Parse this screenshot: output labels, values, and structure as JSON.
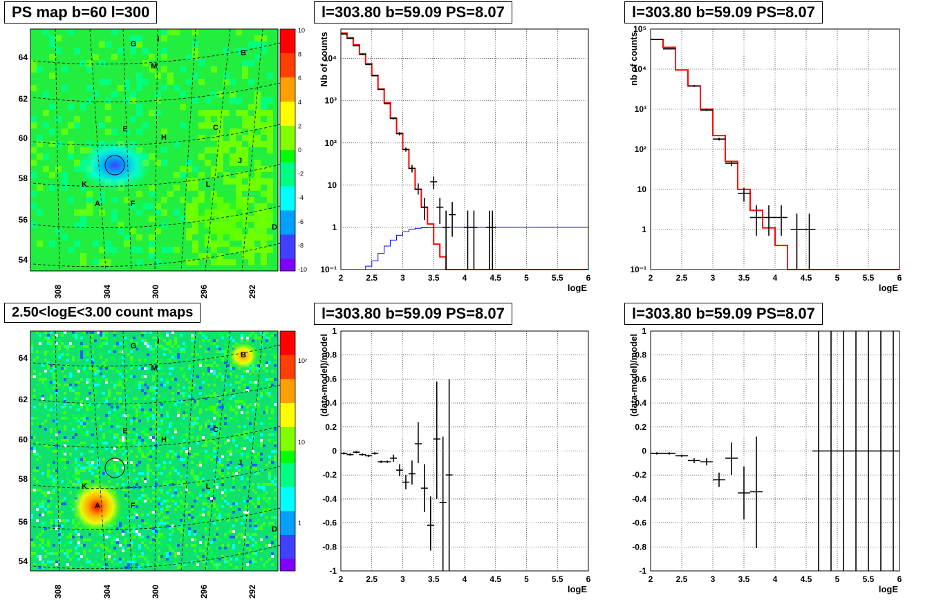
{
  "titles": {
    "map_ps": "PS map b=60 l=300",
    "map_counts": "2.50<logE<3.00 count maps",
    "spec1": "l=303.80 b=59.09 PS=8.07",
    "spec2": "l=303.80 b=59.09 PS=8.07",
    "res1": "l=303.80 b=59.09 PS=8.07",
    "res2": "l=303.80 b=59.09 PS=8.07"
  },
  "maps": {
    "x_ticks": [
      "308",
      "304",
      "300",
      "296",
      "292"
    ],
    "y_ticks": [
      "64",
      "62",
      "60",
      "58",
      "56",
      "54"
    ],
    "sources": [
      "G",
      "I",
      "B",
      "M",
      "E",
      "H",
      "C",
      "J",
      "K",
      "L",
      "A",
      "F",
      "D"
    ],
    "ps_palette_ticks": [
      "10",
      "8",
      "6",
      "4",
      "2",
      "0",
      "-2",
      "-4",
      "-6",
      "-8",
      "-10"
    ],
    "count_palette_ticks": [
      "10²",
      "10",
      "1"
    ],
    "colors": [
      "#8000ff",
      "#4040ff",
      "#00a0ff",
      "#00ffff",
      "#00ff80",
      "#00ff00",
      "#80ff00",
      "#ffff00",
      "#ffa000",
      "#ff4000",
      "#ff0000"
    ]
  },
  "chart_data": [
    {
      "type": "line",
      "panel": "spec1",
      "xlabel": "logE",
      "ylabel": "Nb of counts",
      "xlim": [
        2,
        6
      ],
      "ylim": [
        0.1,
        50000
      ],
      "yscale": "log",
      "x_ticks": [
        "2",
        "2.5",
        "3",
        "3.5",
        "4",
        "4.5",
        "5",
        "5.5",
        "6"
      ],
      "y_ticks": [
        "10⁻¹",
        "1",
        "10",
        "10²",
        "10³",
        "10⁴"
      ],
      "grid": true,
      "series": [
        {
          "color": "#ff0000",
          "values": [
            40000,
            31000,
            21000,
            13000,
            7500,
            4000,
            1900,
            900,
            390,
            170,
            70,
            25,
            8,
            3,
            1.2,
            0.4,
            0.2,
            0.1,
            0.1,
            0.1,
            0.1,
            0.1,
            0.1,
            0.1,
            0.1,
            0.1,
            0.1,
            0.1,
            0.1,
            0.1,
            0.1,
            0.1,
            0.1,
            0.1,
            0.1,
            0.1,
            0.1,
            0.1,
            0.1,
            0.1
          ]
        },
        {
          "color": "#0000ff",
          "values": [
            0.1,
            0.1,
            0.1,
            0.1,
            0.12,
            0.16,
            0.24,
            0.36,
            0.5,
            0.65,
            0.78,
            0.9,
            0.95,
            0.98,
            0.99,
            1,
            1,
            1,
            1,
            1,
            1,
            1,
            1,
            1,
            1,
            1,
            1,
            1,
            1,
            1,
            1,
            1,
            1,
            1,
            1,
            1,
            1,
            1,
            1,
            1
          ]
        }
      ],
      "points": [
        {
          "x": 2.05,
          "y": 38000,
          "lo": 37000,
          "hi": 39000
        },
        {
          "x": 2.15,
          "y": 30000,
          "lo": 29000,
          "hi": 31000
        },
        {
          "x": 2.25,
          "y": 20000,
          "lo": 19500,
          "hi": 20500
        },
        {
          "x": 2.35,
          "y": 12500,
          "lo": 12000,
          "hi": 13000
        },
        {
          "x": 2.45,
          "y": 7200,
          "lo": 7000,
          "hi": 7400
        },
        {
          "x": 2.55,
          "y": 3900,
          "lo": 3800,
          "hi": 4000
        },
        {
          "x": 2.65,
          "y": 1850,
          "lo": 1800,
          "hi": 1900
        },
        {
          "x": 2.75,
          "y": 850,
          "lo": 820,
          "hi": 880
        },
        {
          "x": 2.85,
          "y": 380,
          "lo": 360,
          "hi": 400
        },
        {
          "x": 2.95,
          "y": 165,
          "lo": 150,
          "hi": 180
        },
        {
          "x": 3.05,
          "y": 70,
          "lo": 62,
          "hi": 78
        },
        {
          "x": 3.15,
          "y": 25,
          "lo": 20,
          "hi": 30
        },
        {
          "x": 3.25,
          "y": 8,
          "lo": 6,
          "hi": 11
        },
        {
          "x": 3.35,
          "y": 3,
          "lo": 1.5,
          "hi": 5
        },
        {
          "x": 3.5,
          "y": 12,
          "lo": 8,
          "hi": 16
        },
        {
          "x": 3.6,
          "y": 3,
          "lo": 1.2,
          "hi": 5
        },
        {
          "x": 3.7,
          "y": 1,
          "lo": 0.1,
          "hi": 2.5
        },
        {
          "x": 3.8,
          "y": 2,
          "lo": 0.6,
          "hi": 4
        },
        {
          "x": 4.05,
          "y": 1,
          "lo": 0.1,
          "hi": 2.5
        },
        {
          "x": 4.15,
          "y": 1,
          "lo": 0.1,
          "hi": 2.5
        },
        {
          "x": 4.4,
          "y": 1,
          "lo": 0.1,
          "hi": 2.5
        },
        {
          "x": 4.45,
          "y": 1,
          "lo": 0.1,
          "hi": 2.5
        }
      ]
    },
    {
      "type": "line",
      "panel": "spec2",
      "xlabel": "logE",
      "ylabel": "nb of counts",
      "xlim": [
        2,
        6
      ],
      "ylim": [
        0.1,
        100000
      ],
      "yscale": "log",
      "x_ticks": [
        "2",
        "2.5",
        "3",
        "3.5",
        "4",
        "4.5",
        "5",
        "5.5",
        "6"
      ],
      "y_ticks": [
        "10⁻¹",
        "1",
        "10",
        "10²",
        "10³",
        "10⁴",
        "10⁵"
      ],
      "grid": true,
      "series": [
        {
          "color": "#ff0000",
          "values": [
            55000,
            35000,
            9500,
            3800,
            1000,
            220,
            50,
            10,
            3,
            1.1,
            0.4,
            0.1,
            0.1,
            0.1,
            0.1,
            0.1,
            0.1,
            0.1,
            0.1,
            0.1
          ]
        }
      ],
      "points": [
        {
          "x": 2.1,
          "y": 55000,
          "lo": 54000,
          "hi": 56000
        },
        {
          "x": 2.3,
          "y": 32000,
          "lo": 31000,
          "hi": 33000
        },
        {
          "x": 2.7,
          "y": 3800,
          "lo": 3600,
          "hi": 4000
        },
        {
          "x": 2.9,
          "y": 950,
          "lo": 900,
          "hi": 1000
        },
        {
          "x": 3.1,
          "y": 180,
          "lo": 165,
          "hi": 195
        },
        {
          "x": 3.3,
          "y": 45,
          "lo": 38,
          "hi": 52
        },
        {
          "x": 3.5,
          "y": 8,
          "lo": 5,
          "hi": 11
        },
        {
          "x": 3.7,
          "y": 2,
          "lo": 0.7,
          "hi": 4
        },
        {
          "x": 3.9,
          "y": 2,
          "lo": 0.7,
          "hi": 4
        },
        {
          "x": 4.1,
          "y": 2,
          "lo": 0.7,
          "hi": 4
        },
        {
          "x": 4.35,
          "y": 1,
          "lo": 0.1,
          "hi": 2.5
        },
        {
          "x": 4.55,
          "y": 1,
          "lo": 0.1,
          "hi": 2.5
        }
      ]
    },
    {
      "type": "scatter",
      "panel": "res1",
      "xlabel": "logE",
      "ylabel": "(data-model)/model",
      "xlim": [
        2,
        6
      ],
      "ylim": [
        -1,
        1
      ],
      "x_ticks": [
        "2",
        "2.5",
        "3",
        "3.5",
        "4",
        "4.5",
        "5",
        "5.5",
        "6"
      ],
      "y_ticks": [
        "1",
        "0.8",
        "0.6",
        "0.4",
        "0.2",
        "0",
        "-0.2",
        "-0.4",
        "-0.6",
        "-0.8",
        "-1"
      ],
      "grid": true,
      "points": [
        {
          "x": 2.05,
          "y": -0.02,
          "lo": -0.03,
          "hi": -0.01
        },
        {
          "x": 2.15,
          "y": -0.03,
          "lo": -0.04,
          "hi": -0.02
        },
        {
          "x": 2.25,
          "y": -0.01,
          "lo": -0.02,
          "hi": 0.0
        },
        {
          "x": 2.35,
          "y": -0.03,
          "lo": -0.04,
          "hi": -0.02
        },
        {
          "x": 2.45,
          "y": -0.04,
          "lo": -0.05,
          "hi": -0.03
        },
        {
          "x": 2.55,
          "y": -0.02,
          "lo": -0.03,
          "hi": -0.01
        },
        {
          "x": 2.65,
          "y": -0.09,
          "lo": -0.1,
          "hi": -0.08
        },
        {
          "x": 2.75,
          "y": -0.09,
          "lo": -0.1,
          "hi": -0.08
        },
        {
          "x": 2.85,
          "y": -0.06,
          "lo": -0.09,
          "hi": -0.03
        },
        {
          "x": 2.95,
          "y": -0.16,
          "lo": -0.21,
          "hi": -0.11
        },
        {
          "x": 3.05,
          "y": -0.26,
          "lo": -0.32,
          "hi": -0.2
        },
        {
          "x": 3.15,
          "y": -0.19,
          "lo": -0.28,
          "hi": -0.08
        },
        {
          "x": 3.25,
          "y": 0.06,
          "lo": -0.1,
          "hi": 0.24
        },
        {
          "x": 3.35,
          "y": -0.31,
          "lo": -0.51,
          "hi": -0.11
        },
        {
          "x": 3.45,
          "y": -0.62,
          "lo": -0.83,
          "hi": -0.38
        },
        {
          "x": 3.55,
          "y": 0.1,
          "lo": -0.4,
          "hi": 0.58
        },
        {
          "x": 3.65,
          "y": -0.43,
          "lo": -1.0,
          "hi": 0.12
        },
        {
          "x": 3.75,
          "y": -0.2,
          "lo": -1.0,
          "hi": 0.6
        }
      ]
    },
    {
      "type": "scatter",
      "panel": "res2",
      "xlabel": "logE",
      "ylabel": "(data-model)/model",
      "xlim": [
        2,
        6
      ],
      "ylim": [
        -1,
        1
      ],
      "x_ticks": [
        "2",
        "2.5",
        "3",
        "3.5",
        "4",
        "4.5",
        "5",
        "5.5",
        "6"
      ],
      "y_ticks": [
        "1",
        "0.8",
        "0.6",
        "0.4",
        "0.2",
        "0",
        "-0.2",
        "-0.4",
        "-0.6",
        "-0.8",
        "-1"
      ],
      "grid": true,
      "points": [
        {
          "x": 2.1,
          "y": -0.02,
          "lo": -0.03,
          "hi": -0.01
        },
        {
          "x": 2.3,
          "y": -0.02,
          "lo": -0.03,
          "hi": -0.01
        },
        {
          "x": 2.5,
          "y": -0.04,
          "lo": -0.05,
          "hi": -0.03
        },
        {
          "x": 2.7,
          "y": -0.08,
          "lo": -0.1,
          "hi": -0.06
        },
        {
          "x": 2.9,
          "y": -0.09,
          "lo": -0.12,
          "hi": -0.06
        },
        {
          "x": 3.1,
          "y": -0.24,
          "lo": -0.3,
          "hi": -0.18
        },
        {
          "x": 3.3,
          "y": -0.06,
          "lo": -0.2,
          "hi": 0.07
        },
        {
          "x": 3.5,
          "y": -0.35,
          "lo": -0.57,
          "hi": -0.13
        },
        {
          "x": 3.7,
          "y": -0.34,
          "lo": -0.81,
          "hi": 0.12
        },
        {
          "x": 4.7,
          "y": 0,
          "lo": -1,
          "hi": 1
        },
        {
          "x": 4.9,
          "y": 0,
          "lo": -1,
          "hi": 1
        },
        {
          "x": 5.1,
          "y": 0,
          "lo": -1,
          "hi": 1
        },
        {
          "x": 5.3,
          "y": 0,
          "lo": -1,
          "hi": 1
        },
        {
          "x": 5.5,
          "y": 0,
          "lo": -1,
          "hi": 1
        },
        {
          "x": 5.7,
          "y": 0,
          "lo": -1,
          "hi": 1
        },
        {
          "x": 5.9,
          "y": 0,
          "lo": -1,
          "hi": 1
        }
      ]
    }
  ]
}
